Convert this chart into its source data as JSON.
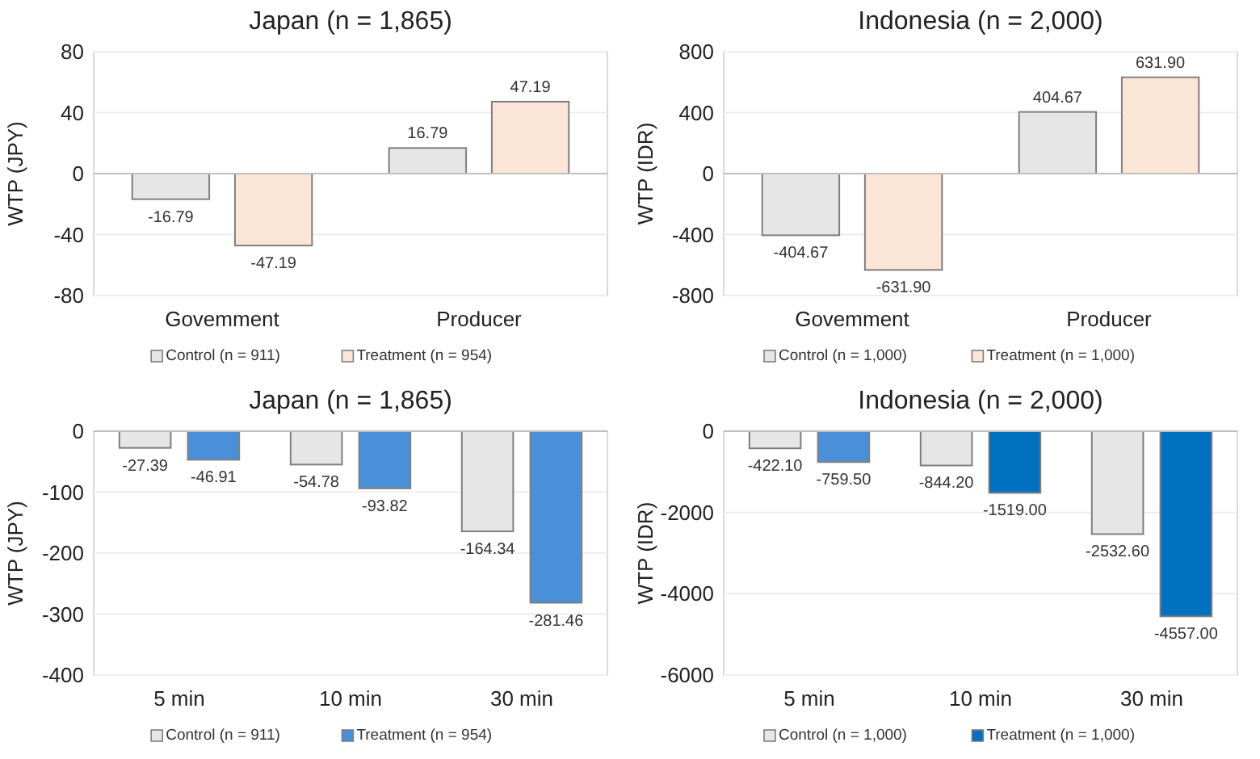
{
  "chart_data": [
    {
      "type": "bar",
      "title": "Japan (n = 1,865)",
      "ylabel": "WTP (JPY)",
      "categories": [
        "Govemment",
        "Producer"
      ],
      "ylim": [
        -80,
        80
      ],
      "yticks": [
        -80,
        -40,
        0,
        40,
        80
      ],
      "grid": "y",
      "legend": "bottom",
      "series": [
        {
          "name": "Control (n = 911)",
          "color": "#e7e6e6",
          "values": [
            -16.79,
            16.79
          ],
          "value_labels": [
            "-16.79",
            "16.79"
          ]
        },
        {
          "name": "Treatment (n = 954)",
          "color": "#fbe5d6",
          "values": [
            -47.19,
            47.19
          ],
          "value_labels": [
            "-47.19",
            "47.19"
          ]
        }
      ]
    },
    {
      "type": "bar",
      "title": "Indonesia (n = 2,000)",
      "ylabel": "WTP (IDR)",
      "categories": [
        "Govemment",
        "Producer"
      ],
      "ylim": [
        -800,
        800
      ],
      "yticks": [
        -800,
        -400,
        0,
        400,
        800
      ],
      "grid": "y",
      "legend": "bottom",
      "series": [
        {
          "name": "Control (n = 1,000)",
          "color": "#e7e6e6",
          "values": [
            -404.67,
            404.67
          ],
          "value_labels": [
            "-404.67",
            "404.67"
          ]
        },
        {
          "name": "Treatment (n = 1,000)",
          "color": "#fbe5d6",
          "values": [
            -631.9,
            631.9
          ],
          "value_labels": [
            "-631.90",
            "631.90"
          ]
        }
      ]
    },
    {
      "type": "bar",
      "title": "Japan (n = 1,865)",
      "ylabel": "WTP (JPY)",
      "categories": [
        "5 min",
        "10 min",
        "30 min"
      ],
      "ylim": [
        -400,
        0
      ],
      "yticks": [
        -400,
        -300,
        -200,
        -100,
        0
      ],
      "grid": "y",
      "legend": "bottom",
      "series": [
        {
          "name": "Control (n = 911)",
          "color": "#e7e6e6",
          "values": [
            -27.39,
            -54.78,
            -164.34
          ],
          "value_labels": [
            "-27.39",
            "-54.78",
            "-164.34"
          ]
        },
        {
          "name": "Treatment (n = 954)",
          "color": "#4a90d9",
          "values": [
            -46.91,
            -93.82,
            -281.46
          ],
          "value_labels": [
            "-46.91",
            "-93.82",
            "-281.46"
          ]
        }
      ]
    },
    {
      "type": "bar",
      "title": "Indonesia (n = 2,000)",
      "ylabel": "WTP (IDR)",
      "categories": [
        "5 min",
        "10 min",
        "30 min"
      ],
      "ylim": [
        -6000,
        0
      ],
      "yticks": [
        -6000,
        -4000,
        -2000,
        0
      ],
      "grid": "y",
      "legend": "bottom",
      "series": [
        {
          "name": "Control (n = 1,000)",
          "color": "#e7e6e6",
          "values": [
            -422.1,
            -844.2,
            -2532.6
          ],
          "value_labels": [
            "-422.10",
            "-844.20",
            "-2532.60"
          ]
        },
        {
          "name": "Treatment (n = 1,000)",
          "color": "#0070c0",
          "colors": [
            "#4a90d9",
            "#0070c0",
            "#0070c0"
          ],
          "values": [
            -759.5,
            -1519,
            -4557
          ],
          "value_labels": [
            "-759.50",
            "-1519.00",
            "-4557.00"
          ]
        }
      ]
    }
  ]
}
